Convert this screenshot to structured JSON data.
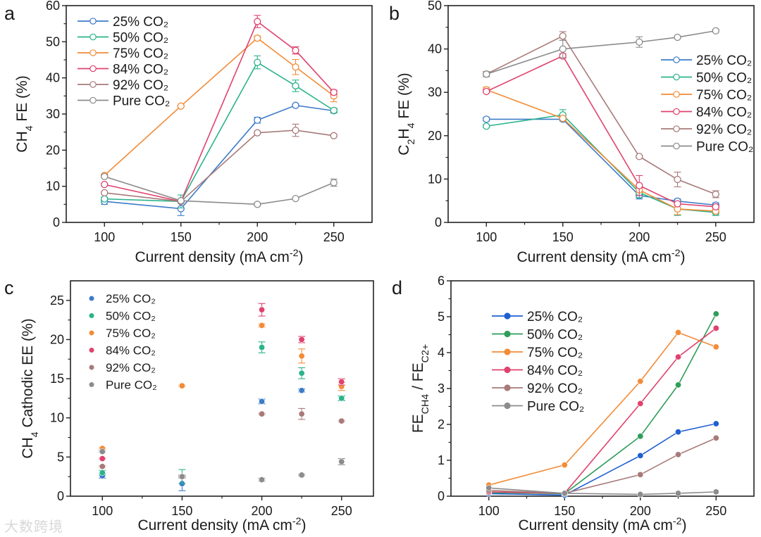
{
  "watermark": "大数跨境",
  "colors": {
    "25%": "#3d7cc9",
    "50%": "#2bb38a",
    "75%": "#f28c38",
    "84%": "#e0426e",
    "92%": "#a87a7a",
    "pure": "#8c8c8c",
    "d25%": "#1f5fd0",
    "d50%": "#2e9e5a"
  },
  "chart_data": [
    {
      "panel_label": "a",
      "type": "line",
      "marker": "open-circle",
      "x": [
        100,
        150,
        200,
        225,
        250
      ],
      "xlim": [
        75,
        275
      ],
      "ylim": [
        0,
        60
      ],
      "xticks": [
        100,
        150,
        200,
        250
      ],
      "yticks": [
        0,
        10,
        20,
        30,
        40,
        50,
        60
      ],
      "xlabel": [
        {
          "t": "Current density (mA cm"
        },
        {
          "t": "-2",
          "sup": true
        },
        {
          "t": ")"
        }
      ],
      "ylabel": [
        {
          "t": "CH"
        },
        {
          "t": "4",
          "sub": true
        },
        {
          "t": " FE (%)"
        }
      ],
      "legend_placement": "top-left",
      "series": [
        {
          "name": "25% CO₂",
          "color": "#3d7cc9",
          "values": [
            5.8,
            3.8,
            28.3,
            32.4,
            30.9
          ],
          "err": [
            0.8,
            1.9,
            0.8,
            0.3,
            0.6
          ]
        },
        {
          "name": "50% CO₂",
          "color": "#2bb38a",
          "values": [
            6.5,
            5.8,
            44.3,
            37.8,
            31.0
          ],
          "err": [
            0.5,
            1.8,
            1.8,
            1.6,
            0.6
          ]
        },
        {
          "name": "75% CO₂",
          "color": "#f28c38",
          "values": [
            13.0,
            32.2,
            51.0,
            43.0,
            35.0
          ],
          "err": [
            0.3,
            0.2,
            0.6,
            2.1,
            1.6
          ]
        },
        {
          "name": "84% CO₂",
          "color": "#e0426e",
          "values": [
            10.5,
            5.8,
            55.6,
            47.6,
            36.0
          ],
          "err": [
            0.3,
            0.2,
            1.7,
            1.0,
            0.6
          ]
        },
        {
          "name": "92% CO₂",
          "color": "#a87a7a",
          "values": [
            8.2,
            5.8,
            24.8,
            25.5,
            24.0
          ],
          "err": [
            0.2,
            0.2,
            0.2,
            1.7,
            0.2
          ]
        },
        {
          "name": "Pure CO₂",
          "color": "#8c8c8c",
          "values": [
            12.7,
            6.0,
            5.0,
            6.6,
            11.0
          ],
          "err": [
            0.3,
            0.2,
            0.4,
            0.2,
            1.0
          ]
        }
      ]
    },
    {
      "panel_label": "b",
      "type": "line",
      "marker": "open-circle",
      "x": [
        100,
        150,
        200,
        225,
        250
      ],
      "xlim": [
        75,
        275
      ],
      "ylim": [
        0,
        50
      ],
      "xticks": [
        100,
        150,
        200,
        250
      ],
      "yticks": [
        0,
        10,
        20,
        30,
        40,
        50
      ],
      "xlabel": [
        {
          "t": "Current density (mA cm"
        },
        {
          "t": "-2",
          "sup": true
        },
        {
          "t": ")"
        }
      ],
      "ylabel": [
        {
          "t": "C"
        },
        {
          "t": "2",
          "sub": true
        },
        {
          "t": "H"
        },
        {
          "t": "4",
          "sub": true
        },
        {
          "t": " FE (%)"
        }
      ],
      "legend_placement": "right",
      "series": [
        {
          "name": "25% CO₂",
          "color": "#3d7cc9",
          "values": [
            23.8,
            23.8,
            6.2,
            4.9,
            4.0
          ],
          "err": [
            0.4,
            0.4,
            0.8,
            0.5,
            0.5
          ]
        },
        {
          "name": "50% CO₂",
          "color": "#2bb38a",
          "values": [
            22.2,
            24.8,
            6.9,
            3.1,
            2.3
          ],
          "err": [
            0.3,
            1.2,
            1.2,
            1.5,
            0.7
          ]
        },
        {
          "name": "75% CO₂",
          "color": "#f28c38",
          "values": [
            30.6,
            24.0,
            7.5,
            3.1,
            2.6
          ],
          "err": [
            0.6,
            0.3,
            0.5,
            1.3,
            0.4
          ]
        },
        {
          "name": "84% CO₂",
          "color": "#e0426e",
          "values": [
            30.2,
            38.4,
            8.5,
            4.3,
            3.6
          ],
          "err": [
            0.2,
            0.5,
            2.3,
            0.3,
            0.3
          ]
        },
        {
          "name": "92% CO₂",
          "color": "#a87a7a",
          "values": [
            34.2,
            43.0,
            15.2,
            9.9,
            6.5
          ],
          "err": [
            0.6,
            1.0,
            0.3,
            1.7,
            0.8
          ]
        },
        {
          "name": "Pure CO₂",
          "color": "#8c8c8c",
          "values": [
            34.2,
            40.0,
            41.6,
            42.7,
            44.2
          ],
          "err": [
            0.6,
            2.0,
            1.2,
            0.2,
            0.3
          ]
        }
      ]
    },
    {
      "panel_label": "c",
      "type": "scatter",
      "marker": "filled-sphere",
      "x": [
        100,
        150,
        200,
        225,
        250
      ],
      "xlim": [
        80,
        270
      ],
      "ylim": [
        0,
        27.5
      ],
      "xticks": [
        100,
        150,
        200,
        250
      ],
      "yticks": [
        0,
        5,
        10,
        15,
        20,
        25
      ],
      "xlabel": [
        {
          "t": "Current density (mA cm"
        },
        {
          "t": "-2",
          "sup": true
        },
        {
          "t": ")"
        }
      ],
      "ylabel": [
        {
          "t": "CH"
        },
        {
          "t": "4",
          "sub": true
        },
        {
          "t": " Cathodic EE (%)"
        }
      ],
      "legend_placement": "top-left",
      "series": [
        {
          "name": "25% CO₂",
          "color": "#3d7cc9",
          "values": [
            2.6,
            1.6,
            12.1,
            13.5,
            12.5
          ],
          "err": [
            0.3,
            0.9,
            0.3,
            0.2,
            0.3
          ]
        },
        {
          "name": "50% CO₂",
          "color": "#2bb38a",
          "values": [
            3.0,
            2.5,
            19.0,
            15.7,
            12.5
          ],
          "err": [
            0.3,
            0.9,
            0.7,
            0.7,
            0.3
          ]
        },
        {
          "name": "75% CO₂",
          "color": "#f28c38",
          "values": [
            6.1,
            14.1,
            21.8,
            17.9,
            14.0
          ],
          "err": [
            0.1,
            0.1,
            0.2,
            0.9,
            0.5
          ]
        },
        {
          "name": "84% CO₂",
          "color": "#e0426e",
          "values": [
            4.8,
            2.5,
            23.8,
            20.0,
            14.6
          ],
          "err": [
            0.1,
            0.1,
            0.8,
            0.4,
            0.4
          ]
        },
        {
          "name": "92% CO₂",
          "color": "#a87a7a",
          "values": [
            3.8,
            2.5,
            10.5,
            10.5,
            9.6
          ],
          "err": [
            0.1,
            0.2,
            0.1,
            0.7,
            0.1
          ]
        },
        {
          "name": "Pure CO₂",
          "color": "#8c8c8c",
          "values": [
            5.7,
            2.5,
            2.1,
            2.7,
            4.4
          ],
          "err": [
            0.1,
            0.2,
            0.2,
            0.1,
            0.4
          ]
        }
      ]
    },
    {
      "panel_label": "d",
      "type": "line",
      "marker": "filled-sphere",
      "x": [
        100,
        150,
        200,
        225,
        250
      ],
      "xlim": [
        75,
        275
      ],
      "ylim": [
        0,
        6
      ],
      "xticks": [
        100,
        150,
        200,
        250
      ],
      "yticks": [
        0,
        1,
        2,
        3,
        4,
        5,
        6
      ],
      "xlabel": [
        {
          "t": "Current density (mA cm"
        },
        {
          "t": "-2",
          "sup": true
        },
        {
          "t": ")"
        }
      ],
      "ylabel": [
        {
          "t": "FE"
        },
        {
          "t": "CH4",
          "sub": true
        },
        {
          "t": " / FE"
        },
        {
          "t": "C2+",
          "sub": true
        }
      ],
      "legend_placement": "top-left",
      "series": [
        {
          "name": "25% CO₂",
          "color": "#1f5fd0",
          "values": [
            0.07,
            0.03,
            1.13,
            1.79,
            2.02
          ]
        },
        {
          "name": "50% CO₂",
          "color": "#2e9e5a",
          "values": [
            0.1,
            0.07,
            1.67,
            3.1,
            5.08
          ]
        },
        {
          "name": "75% CO₂",
          "color": "#f28c38",
          "values": [
            0.31,
            0.87,
            3.2,
            4.56,
            4.16
          ]
        },
        {
          "name": "84% CO₂",
          "color": "#e0426e",
          "values": [
            0.12,
            0.08,
            2.58,
            3.88,
            4.68
          ]
        },
        {
          "name": "92% CO₂",
          "color": "#a87a7a",
          "values": [
            0.16,
            0.08,
            0.6,
            1.16,
            1.62
          ]
        },
        {
          "name": "Pure CO₂",
          "color": "#8c8c8c",
          "values": [
            0.23,
            0.08,
            0.05,
            0.08,
            0.12
          ]
        }
      ]
    }
  ]
}
